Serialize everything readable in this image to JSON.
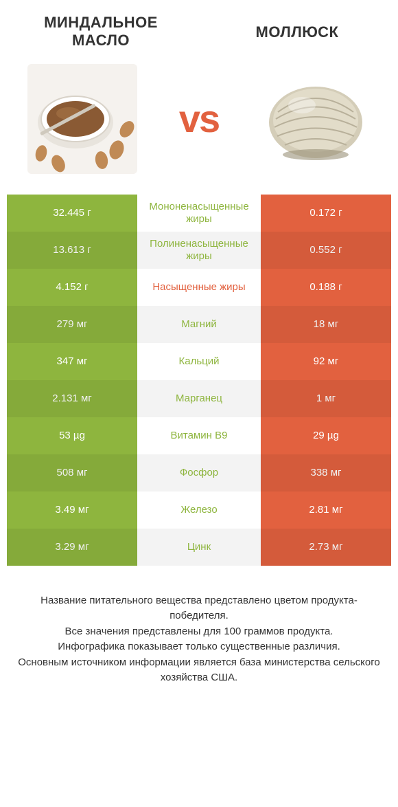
{
  "colors": {
    "left": "#8eb53e",
    "right": "#e2613f",
    "vs": "#e2613f"
  },
  "header": {
    "left_title": "Миндальное масло",
    "right_title": "Моллюск",
    "vs": "vs"
  },
  "rows": [
    {
      "left": "32.445 г",
      "label": "Мононенасыщенные жиры",
      "right": "0.172 г",
      "label_color": "#8eb53e"
    },
    {
      "left": "13.613 г",
      "label": "Полиненасыщенные жиры",
      "right": "0.552 г",
      "label_color": "#8eb53e"
    },
    {
      "left": "4.152 г",
      "label": "Насыщенные жиры",
      "right": "0.188 г",
      "label_color": "#e2613f"
    },
    {
      "left": "279 мг",
      "label": "Магний",
      "right": "18 мг",
      "label_color": "#8eb53e"
    },
    {
      "left": "347 мг",
      "label": "Кальций",
      "right": "92 мг",
      "label_color": "#8eb53e"
    },
    {
      "left": "2.131 мг",
      "label": "Марганец",
      "right": "1 мг",
      "label_color": "#8eb53e"
    },
    {
      "left": "53 µg",
      "label": "Витамин B9",
      "right": "29 µg",
      "label_color": "#8eb53e"
    },
    {
      "left": "508 мг",
      "label": "Фосфор",
      "right": "338 мг",
      "label_color": "#8eb53e"
    },
    {
      "left": "3.49 мг",
      "label": "Железо",
      "right": "2.81 мг",
      "label_color": "#8eb53e"
    },
    {
      "left": "3.29 мг",
      "label": "Цинк",
      "right": "2.73 мг",
      "label_color": "#8eb53e"
    }
  ],
  "footer": {
    "line1": "Название питательного вещества представлено цветом продукта-победителя.",
    "line2": "Все значения представлены для 100 граммов продукта.",
    "line3": "Инфографика показывает только существенные различия.",
    "line4": "Основным источником информации является база министерства сельского хозяйства США."
  }
}
